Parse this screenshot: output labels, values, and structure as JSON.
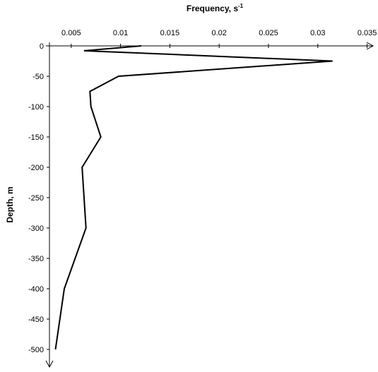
{
  "chart_data": {
    "type": "line",
    "title": "",
    "xlabel": "Frequency, s",
    "xlabel_superscript": "-1",
    "ylabel": "Depth, m",
    "x_axis_position": "top",
    "xlim": [
      0,
      0.035
    ],
    "ylim": [
      -510,
      0
    ],
    "x_ticks": [
      0.005,
      0.01,
      0.015,
      0.02,
      0.025,
      0.03,
      0.035
    ],
    "x_tick_labels": [
      "0.005",
      "0.01",
      "0.015",
      "0.02",
      "0.025",
      "0.03",
      "0.035"
    ],
    "y_ticks": [
      0,
      -50,
      -100,
      -150,
      -200,
      -250,
      -300,
      -350,
      -400,
      -450,
      -500
    ],
    "y_tick_labels": [
      "0",
      "-50",
      "-100",
      "-150",
      "-200",
      "-250",
      "-300",
      "-350",
      "-400",
      "-450",
      "-500"
    ],
    "grid": false,
    "legend": "none",
    "series": [
      {
        "color": "#000000",
        "points": [
          {
            "x": 0.0121,
            "y": 0
          },
          {
            "x": 0.0063,
            "y": -8
          },
          {
            "x": 0.0315,
            "y": -25
          },
          {
            "x": 0.0098,
            "y": -50
          },
          {
            "x": 0.0069,
            "y": -75
          },
          {
            "x": 0.007,
            "y": -100
          },
          {
            "x": 0.008,
            "y": -150
          },
          {
            "x": 0.0061,
            "y": -200
          },
          {
            "x": 0.0065,
            "y": -300
          },
          {
            "x": 0.0043,
            "y": -400
          },
          {
            "x": 0.0034,
            "y": -500
          }
        ]
      }
    ]
  }
}
